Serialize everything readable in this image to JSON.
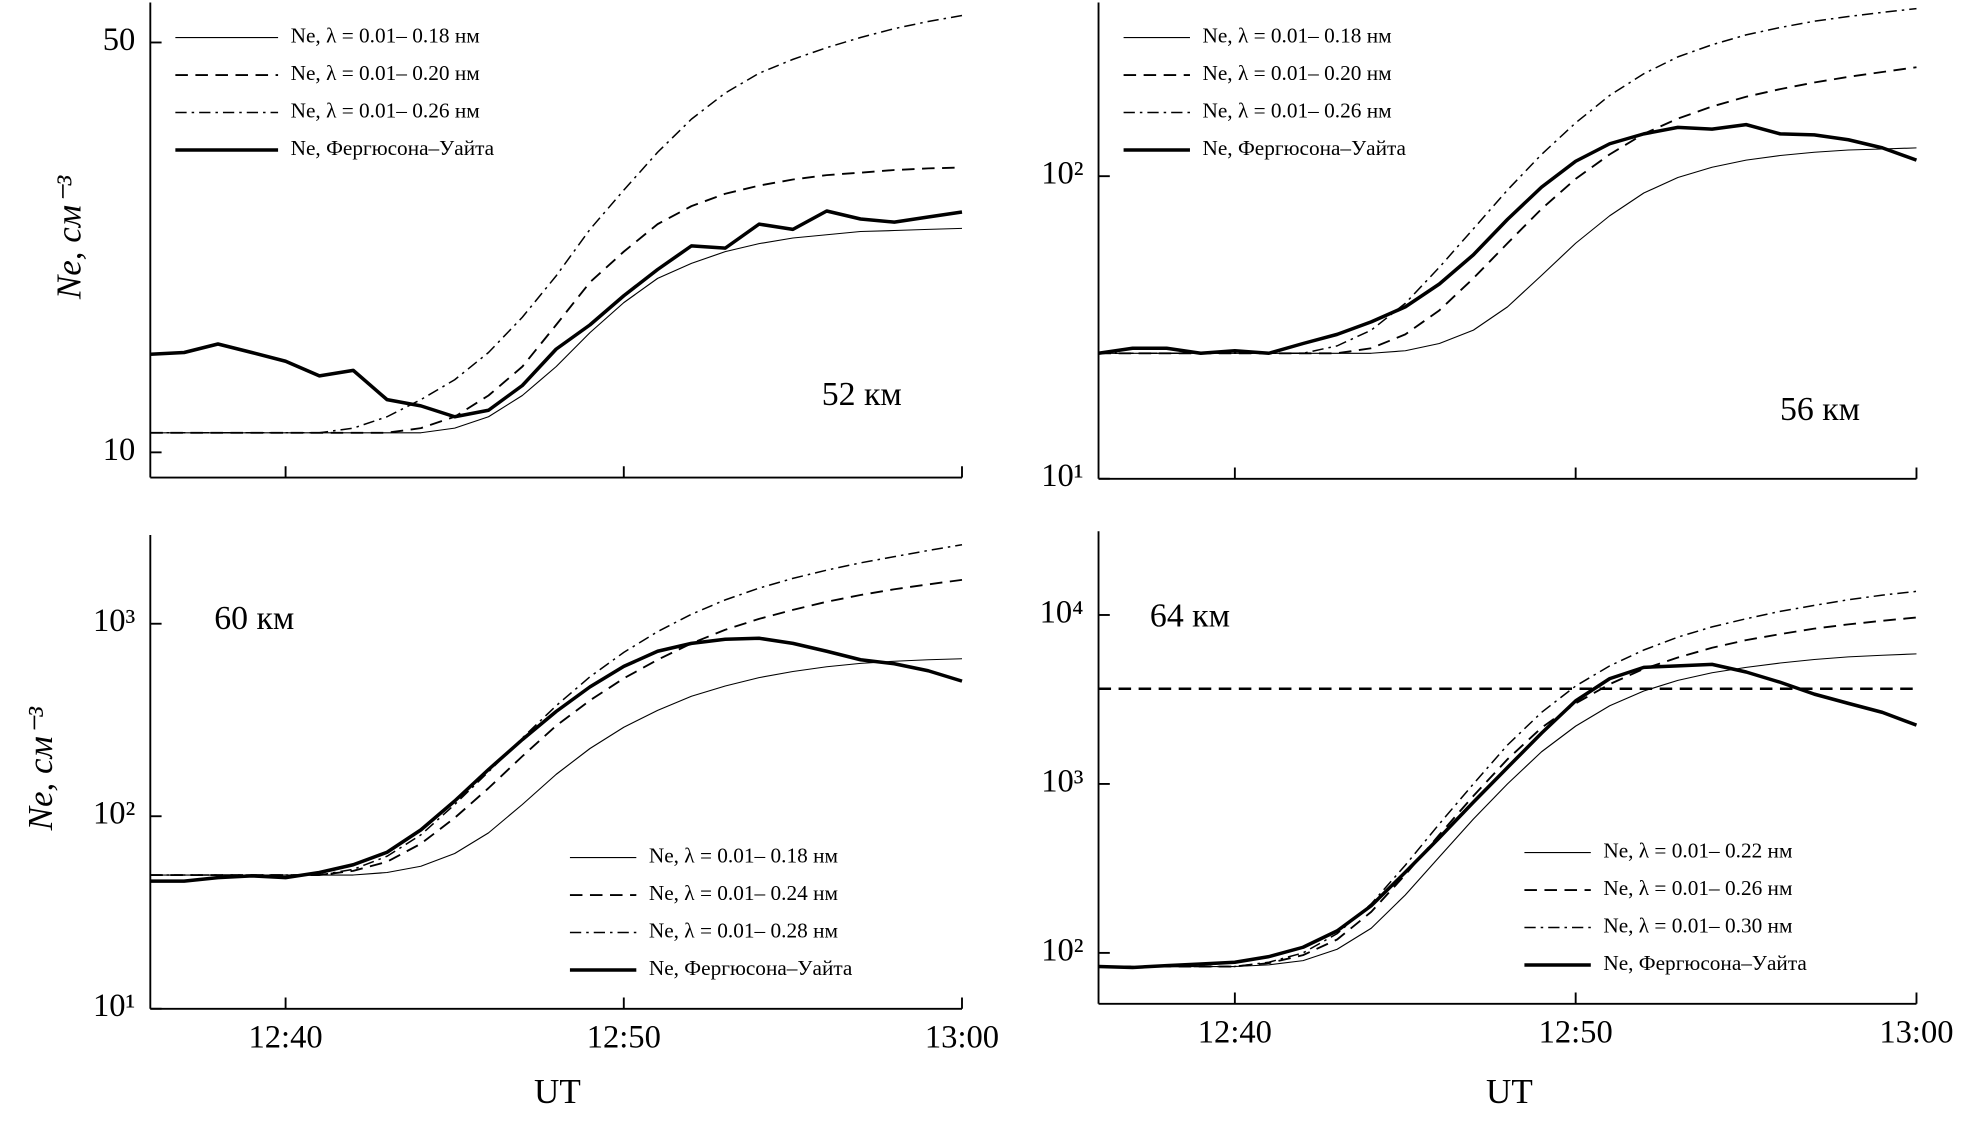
{
  "chart_data": [
    {
      "type": "line",
      "log_y": true,
      "legend": "upper left",
      "annotation": "52 км",
      "y_label": "Ne, см⁻³",
      "x": [
        "12:36",
        "12:37",
        "12:38",
        "12:39",
        "12:40",
        "12:41",
        "12:42",
        "12:43",
        "12:44",
        "12:45",
        "12:46",
        "12:47",
        "12:48",
        "12:49",
        "12:50",
        "12:51",
        "12:52",
        "12:53",
        "12:54",
        "12:55",
        "12:56",
        "12:57",
        "12:58",
        "12:59",
        "13:00"
      ],
      "xlim": [
        "12:36",
        "13:00"
      ],
      "xticks": [
        "12:40",
        "12:50",
        "13:00"
      ],
      "ylim": [
        9.06,
        58.5
      ],
      "yticks": [
        10,
        50
      ],
      "series": [
        {
          "name": "Ne, λ = 0.01– 0.18 нм",
          "color": "#000000",
          "dash": "solid",
          "width": 0.9,
          "values": [
            10.8,
            10.8,
            10.8,
            10.8,
            10.8,
            10.8,
            10.8,
            10.8,
            10.8,
            11.0,
            11.5,
            12.5,
            14,
            16,
            18,
            19.8,
            21,
            22,
            22.7,
            23.2,
            23.5,
            23.8,
            23.9,
            24.0,
            24.1
          ]
        },
        {
          "name": "Ne, λ = 0.01– 0.20 нм",
          "color": "#000000",
          "dash": "dashed",
          "width": 1.5,
          "values": [
            10.8,
            10.8,
            10.8,
            10.8,
            10.8,
            10.8,
            10.8,
            10.8,
            11.0,
            11.5,
            12.5,
            14,
            16.5,
            19.5,
            22,
            24.5,
            26.3,
            27.6,
            28.5,
            29.2,
            29.7,
            30,
            30.3,
            30.5,
            30.6
          ]
        },
        {
          "name": "Ne, λ = 0.01– 0.26 нм",
          "color": "#000000",
          "dash": "dashdot",
          "width": 1.2,
          "values": [
            10.8,
            10.8,
            10.8,
            10.8,
            10.8,
            10.8,
            11.0,
            11.5,
            12.3,
            13.3,
            14.8,
            17,
            20,
            24,
            28,
            32.5,
            37,
            41,
            44.3,
            46.8,
            49,
            51,
            52.8,
            54.3,
            55.6
          ]
        },
        {
          "name": "Ne, Фергюсона–Уайта",
          "color": "#000000",
          "dash": "solid",
          "width": 2.8,
          "values": [
            14.7,
            14.8,
            15.3,
            14.8,
            14.3,
            13.5,
            13.8,
            12.3,
            12.0,
            11.5,
            11.8,
            13,
            15,
            16.5,
            18.5,
            20.5,
            22.5,
            22.3,
            24.5,
            24,
            25.8,
            25,
            24.7,
            25.2,
            25.7
          ]
        }
      ]
    },
    {
      "type": "line",
      "log_y": true,
      "legend": "upper left",
      "annotation": "56 км",
      "x": [
        "12:36",
        "12:37",
        "12:38",
        "12:39",
        "12:40",
        "12:41",
        "12:42",
        "12:43",
        "12:44",
        "12:45",
        "12:46",
        "12:47",
        "12:48",
        "12:49",
        "12:50",
        "12:51",
        "12:52",
        "12:53",
        "12:54",
        "12:55",
        "12:56",
        "12:57",
        "12:58",
        "12:59",
        "13:00"
      ],
      "xlim": [
        "12:36",
        "13:00"
      ],
      "xticks": [
        "12:40",
        "12:50",
        "13:00"
      ],
      "ylim": [
        10,
        375
      ],
      "yticks": [
        {
          "value": 10,
          "label": "10¹"
        },
        {
          "value": 100,
          "label": "10²"
        }
      ],
      "series": [
        {
          "name": "Ne, λ = 0.01– 0.18 нм",
          "color": "#000000",
          "dash": "solid",
          "width": 0.9,
          "values": [
            26,
            26,
            26,
            26,
            26,
            26,
            26,
            26,
            26,
            26.5,
            28,
            31,
            37,
            47,
            60,
            74,
            88,
            99,
            107,
            113,
            117,
            120,
            122,
            123,
            124
          ]
        },
        {
          "name": "Ne, λ = 0.01– 0.20 нм",
          "color": "#000000",
          "dash": "dashed",
          "width": 1.5,
          "values": [
            26,
            26,
            26,
            26,
            26,
            26,
            26,
            26,
            27,
            30,
            36,
            46,
            60,
            78,
            98,
            118,
            138,
            155,
            170,
            183,
            194,
            204,
            213,
            221,
            229
          ]
        },
        {
          "name": "Ne, λ = 0.01– 0.26 нм",
          "color": "#000000",
          "dash": "dashdot",
          "width": 1.2,
          "values": [
            26,
            26,
            26,
            26,
            26,
            26,
            26,
            27.5,
            31,
            38,
            50,
            67,
            90,
            118,
            150,
            185,
            218,
            248,
            272,
            293,
            310,
            325,
            337,
            348,
            358
          ]
        },
        {
          "name": "Ne, Фергюсона–Уайта",
          "color": "#000000",
          "dash": "solid",
          "width": 2.8,
          "values": [
            26,
            27,
            27,
            26,
            26.5,
            26,
            28,
            30,
            33,
            37,
            44,
            55,
            72,
            92,
            112,
            128,
            138,
            145,
            143,
            148,
            138,
            137,
            132,
            124,
            113
          ]
        }
      ]
    },
    {
      "type": "line",
      "log_y": true,
      "legend": "lower right",
      "annotation": "60 км",
      "y_label": "Ne, см⁻³",
      "x_label": "UT",
      "x": [
        "12:36",
        "12:37",
        "12:38",
        "12:39",
        "12:40",
        "12:41",
        "12:42",
        "12:43",
        "12:44",
        "12:45",
        "12:46",
        "12:47",
        "12:48",
        "12:49",
        "12:50",
        "12:51",
        "12:52",
        "12:53",
        "12:54",
        "12:55",
        "12:56",
        "12:57",
        "12:58",
        "12:59",
        "13:00"
      ],
      "xlim": [
        "12:36",
        "13:00"
      ],
      "xticks": [
        "12:40",
        "12:50",
        "13:00"
      ],
      "ylim": [
        10,
        2890
      ],
      "yticks": [
        {
          "value": 10,
          "label": "10¹"
        },
        {
          "value": 100,
          "label": "10²"
        },
        {
          "value": 1000,
          "label": "10³"
        }
      ],
      "series": [
        {
          "name": "Ne, λ = 0.01– 0.18 нм",
          "color": "#000000",
          "dash": "solid",
          "width": 0.9,
          "values": [
            49.5,
            49.5,
            49.5,
            49.5,
            49.5,
            49.5,
            49.5,
            51,
            55,
            64,
            82,
            115,
            165,
            225,
            290,
            355,
            420,
            475,
            525,
            565,
            598,
            622,
            638,
            650,
            658
          ]
        },
        {
          "name": "Ne, λ = 0.01– 0.24 нм",
          "color": "#000000",
          "dash": "dashed",
          "width": 1.5,
          "values": [
            49.5,
            49.5,
            49.5,
            49.5,
            49.5,
            49.5,
            52,
            58,
            72,
            98,
            140,
            205,
            295,
            400,
            520,
            650,
            790,
            930,
            1060,
            1180,
            1300,
            1410,
            1510,
            1600,
            1690
          ]
        },
        {
          "name": "Ne, λ = 0.01– 0.28 нм",
          "color": "#000000",
          "dash": "dashdot",
          "width": 1.2,
          "values": [
            49.5,
            49.5,
            49.5,
            49.5,
            49.5,
            49.5,
            53,
            62,
            80,
            115,
            170,
            255,
            375,
            530,
            710,
            910,
            1120,
            1330,
            1530,
            1720,
            1900,
            2070,
            2230,
            2400,
            2570
          ]
        },
        {
          "name": "Ne, Фергюсона–Уайта",
          "color": "#000000",
          "dash": "solid",
          "width": 2.8,
          "values": [
            46,
            46,
            48,
            49,
            48,
            51,
            56,
            65,
            85,
            120,
            175,
            250,
            350,
            470,
            600,
            720,
            790,
            830,
            840,
            790,
            720,
            650,
            620,
            570,
            503
          ]
        }
      ]
    },
    {
      "type": "line",
      "log_y": true,
      "legend": "lower right",
      "annotation": "64 км",
      "x_label": "UT",
      "reference_line": 3660,
      "x": [
        "12:36",
        "12:37",
        "12:38",
        "12:39",
        "12:40",
        "12:41",
        "12:42",
        "12:43",
        "12:44",
        "12:45",
        "12:46",
        "12:47",
        "12:48",
        "12:49",
        "12:50",
        "12:51",
        "12:52",
        "12:53",
        "12:54",
        "12:55",
        "12:56",
        "12:57",
        "12:58",
        "12:59",
        "13:00"
      ],
      "xlim": [
        "12:36",
        "13:00"
      ],
      "xticks": [
        "12:40",
        "12:50",
        "13:00"
      ],
      "ylim": [
        50,
        31300
      ],
      "yticks": [
        {
          "value": 100,
          "label": "10²"
        },
        {
          "value": 1000,
          "label": "10³"
        },
        {
          "value": 10000,
          "label": "10⁴"
        }
      ],
      "series": [
        {
          "name": "Ne, λ = 0.01– 0.22 нм",
          "color": "#000000",
          "dash": "solid",
          "width": 0.9,
          "values": [
            83,
            83,
            83,
            83,
            83,
            85,
            90,
            105,
            140,
            220,
            370,
            620,
            1000,
            1550,
            2200,
            2900,
            3550,
            4100,
            4550,
            4900,
            5200,
            5450,
            5650,
            5780,
            5890
          ]
        },
        {
          "name": "Ne, λ = 0.01– 0.26 нм",
          "color": "#000000",
          "dash": "dashed",
          "width": 1.5,
          "values": [
            83,
            83,
            83,
            83,
            83,
            87,
            97,
            120,
            175,
            290,
            500,
            850,
            1400,
            2150,
            3000,
            3900,
            4800,
            5600,
            6400,
            7100,
            7700,
            8300,
            8800,
            9250,
            9660
          ]
        },
        {
          "name": "Ne, λ = 0.01– 0.30 нм",
          "color": "#000000",
          "dash": "dashdot",
          "width": 1.2,
          "values": [
            83,
            83,
            83,
            83,
            83,
            88,
            100,
            130,
            195,
            330,
            580,
            1000,
            1700,
            2650,
            3800,
            5000,
            6200,
            7400,
            8500,
            9500,
            10500,
            11400,
            12300,
            13100,
            13800
          ]
        },
        {
          "name": "Ne, Фергюсона–Уайта",
          "color": "#000000",
          "dash": "solid",
          "width": 2.8,
          "values": [
            83,
            82,
            84,
            86,
            88,
            95,
            108,
            135,
            190,
            300,
            480,
            780,
            1250,
            2000,
            3100,
            4200,
            4900,
            5000,
            5100,
            4600,
            4000,
            3400,
            3000,
            2650,
            2230
          ]
        }
      ]
    }
  ]
}
